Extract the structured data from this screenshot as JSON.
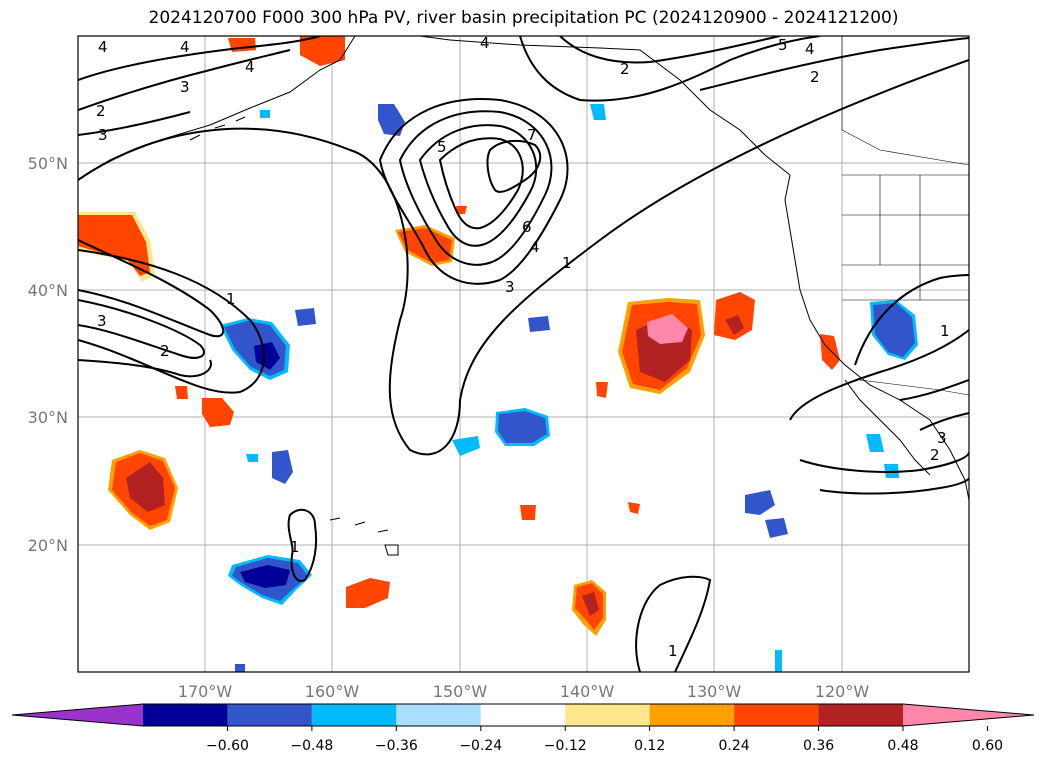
{
  "title": "2024120700 F000 300 hPa PV, river basin precipitation PC (2024120900 - 2024121200)",
  "lat_labels": [
    "50°N",
    "40°N",
    "30°N",
    "20°N"
  ],
  "lon_labels": [
    "170°W",
    "160°W",
    "150°W",
    "140°W",
    "130°W",
    "120°W"
  ],
  "contour_labels": [
    "4",
    "4",
    "3",
    "2",
    "3",
    "4",
    "5",
    "7",
    "6",
    "4",
    "3",
    "1",
    "1",
    "3",
    "2",
    "1",
    "4",
    "5",
    "4",
    "2",
    "2",
    "1",
    "3",
    "2",
    "1"
  ],
  "colorbar": {
    "ticks": [
      "−0.60",
      "−0.48",
      "−0.36",
      "−0.24",
      "−0.12",
      "0.12",
      "0.24",
      "0.36",
      "0.48",
      "0.60"
    ],
    "colors": [
      "#9933cc",
      "#000099",
      "#3355cc",
      "#00bbff",
      "#aaddff",
      "#ffffff",
      "#ffe68c",
      "#ffa000",
      "#ff4500",
      "#b22222",
      "#ff88aa"
    ]
  }
}
